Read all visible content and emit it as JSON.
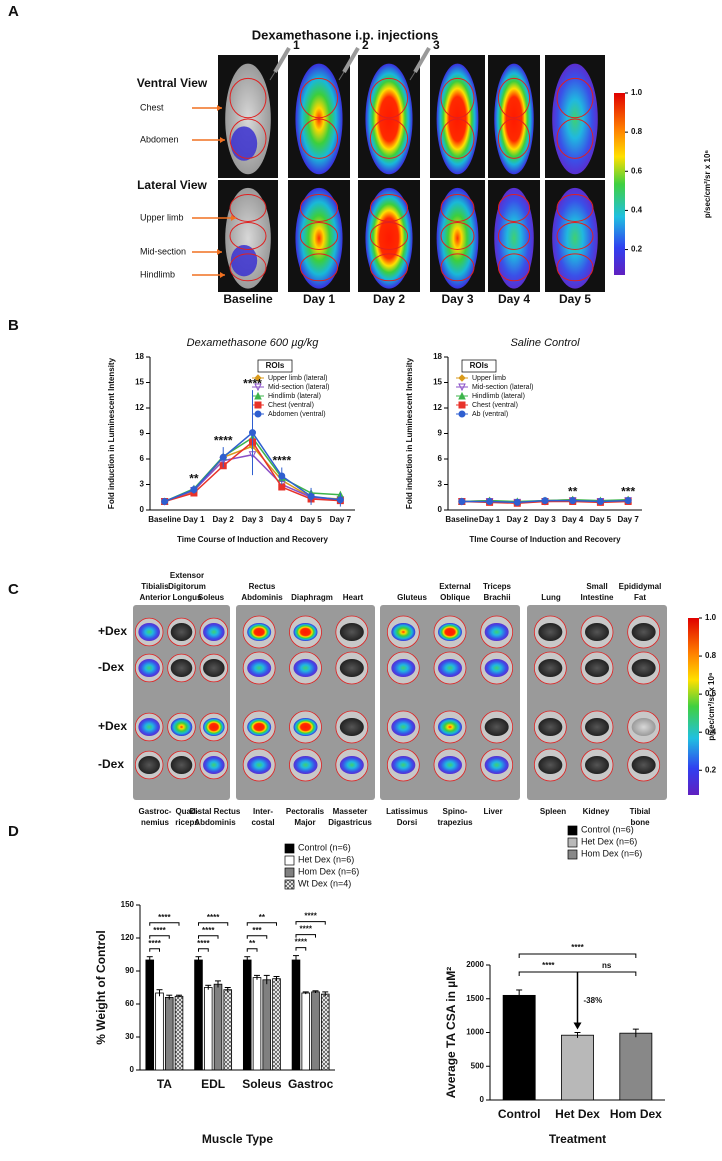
{
  "panel_labels": [
    "A",
    "B",
    "C",
    "D"
  ],
  "panel_a": {
    "title": "Dexamethasone i.p. injections",
    "injections": [
      "1",
      "2",
      "3"
    ],
    "views": [
      "Ventral View",
      "Lateral View"
    ],
    "ventral_rois": [
      "Chest",
      "Abdomen"
    ],
    "lateral_rois": [
      "Upper limb",
      "Mid-section",
      "Hindlimb"
    ],
    "columns": [
      "Baseline",
      "Day 1",
      "Day 2",
      "Day 3",
      "Day 4",
      "Day 5"
    ],
    "colorbar": {
      "label": "p/sec/cm²/sr x 10⁶",
      "clim": [
        0.07,
        1
      ],
      "ticks": [
        {
          "value": 1,
          "label": "1.0"
        },
        0.8,
        0.6,
        0.4,
        0.2
      ]
    }
  },
  "panel_c": {
    "top_labels": [
      [
        "Tibialis",
        "Anterior"
      ],
      [
        "Extensor",
        "Digitorum",
        "Longus"
      ],
      [
        "Soleus"
      ],
      [
        "Rectus",
        "Abdominis"
      ],
      [
        "Diaphragm"
      ],
      [
        "Heart"
      ],
      [
        "Gluteus"
      ],
      [
        "External",
        "Oblique"
      ],
      [
        "Triceps",
        "Brachii"
      ],
      [
        "Lung"
      ],
      [
        "Small",
        "Intestine"
      ],
      [
        "Epididymal",
        "Fat"
      ]
    ],
    "bottom_labels": [
      [
        "Gastroc-",
        "nemius"
      ],
      [
        "Quad-",
        "riceps"
      ],
      [
        "Distal Rectus",
        "Abdominis"
      ],
      [
        "Inter-",
        "costal"
      ],
      [
        "Pectoralis",
        "Major"
      ],
      [
        "Masseter",
        "Digastricus"
      ],
      [
        "Latissimus",
        "Dorsi"
      ],
      [
        "Spino-",
        "trapezius"
      ],
      [
        "Liver"
      ],
      [
        "Spleen"
      ],
      [
        "Kidney"
      ],
      [
        "Tibial",
        "bone"
      ]
    ],
    "rows": [
      "+Dex",
      "-Dex",
      "+Dex",
      "-Dex"
    ],
    "colorbar": {
      "label": "p/sec/cm²/sr x 10⁶",
      "clim": [
        0.07,
        1
      ],
      "ticks": [
        {
          "value": 1,
          "label": "1.0"
        },
        0.8,
        0.6,
        0.4,
        0.2
      ]
    }
  },
  "chart_data": [
    {
      "type": "line",
      "title": "Dexamethasone 600 µg/kg",
      "y_label": "Fold induction in Luminescent Intensity",
      "x_label": "Time Course of Induction and Recovery",
      "categories": [
        "Baseline",
        "Day 1",
        "Day 2",
        "Day 3",
        "Day 4",
        "Day 5",
        "Day 7"
      ],
      "ylim": [
        0,
        18
      ],
      "yticks": [
        0,
        3,
        6,
        9,
        12,
        15,
        18
      ],
      "legend_title": "ROIs",
      "series": [
        {
          "name": "Upper limb (lateral)",
          "color": "#d99a1c",
          "marker": "diamond",
          "values": [
            1,
            2.2,
            6.2,
            7.5,
            3.5,
            1.5,
            1.3
          ]
        },
        {
          "name": "Mid-section (lateral)",
          "color": "#8a4fc7",
          "marker": "triangle-down",
          "values": [
            1,
            2.3,
            5.8,
            6.5,
            3.0,
            1.5,
            1.2
          ]
        },
        {
          "name": "Hindlimb (lateral)",
          "color": "#3cb44b",
          "marker": "triangle",
          "values": [
            1,
            2.5,
            6.3,
            8.5,
            3.8,
            2.0,
            1.8
          ]
        },
        {
          "name": "Chest (ventral)",
          "color": "#e8322a",
          "marker": "square",
          "values": [
            1,
            2.0,
            5.2,
            8.0,
            2.7,
            1.3,
            1.1
          ]
        },
        {
          "name": "Abdomen (ventral)",
          "color": "#2f5fd0",
          "marker": "circle",
          "values": [
            1,
            2.4,
            6.2,
            9.1,
            4.0,
            1.6,
            1.2
          ],
          "errors": [
            0.1,
            0.5,
            1.2,
            5.0,
            1.0,
            1.0,
            0.8
          ]
        }
      ],
      "annotations": [
        {
          "text": "**",
          "category": "Day 1"
        },
        {
          "text": "****",
          "category": "Day 2"
        },
        {
          "text": "****",
          "category": "Day 3"
        },
        {
          "text": "****",
          "category": "Day 4"
        }
      ]
    },
    {
      "type": "line",
      "title": "Saline Control",
      "y_label": "Fold induction in Luminescent Intensity",
      "x_label": "TIme Course of Induction and Recovery",
      "categories": [
        "Baseline",
        "Day 1",
        "Day 2",
        "Day 3",
        "Day 4",
        "Day 5",
        "Day 7"
      ],
      "ylim": [
        0,
        18
      ],
      "yticks": [
        0,
        3,
        6,
        9,
        12,
        15,
        18
      ],
      "legend_title": "ROIs",
      "series": [
        {
          "name": "Upper limb",
          "color": "#d99a1c",
          "marker": "diamond",
          "values": [
            1,
            1.1,
            0.9,
            1.1,
            1.2,
            1.0,
            1.2
          ]
        },
        {
          "name": "Mid-section (lateral)",
          "color": "#8a4fc7",
          "marker": "triangle-down",
          "values": [
            1,
            1.0,
            0.9,
            1.0,
            1.1,
            1.0,
            1.1
          ]
        },
        {
          "name": "Hindlimb (lateral)",
          "color": "#3cb44b",
          "marker": "triangle",
          "values": [
            1,
            1.1,
            1.0,
            1.1,
            1.2,
            1.1,
            1.2
          ]
        },
        {
          "name": "Chest (ventral)",
          "color": "#e8322a",
          "marker": "square",
          "values": [
            1,
            0.9,
            0.8,
            1.0,
            1.0,
            0.9,
            1.0
          ]
        },
        {
          "name": "Ab (ventral)",
          "color": "#2f5fd0",
          "marker": "circle",
          "values": [
            1,
            1.0,
            0.9,
            1.1,
            1.1,
            1.0,
            1.1
          ],
          "errors": [
            0.1,
            0.2,
            0.2,
            0.2,
            0.3,
            0.2,
            0.3
          ]
        }
      ],
      "annotations": [
        {
          "text": "**",
          "category": "Day 4"
        },
        {
          "text": "***",
          "category": "Day 7"
        }
      ]
    },
    {
      "type": "bar",
      "y_label": "% Weight of Control",
      "x_label": "Muscle Type",
      "categories": [
        "TA",
        "EDL",
        "Soleus",
        "Gastroc"
      ],
      "ylim": [
        0,
        150
      ],
      "yticks": [
        0,
        30,
        60,
        90,
        120,
        150
      ],
      "series": [
        {
          "name": "Control (n=6)",
          "color": "#000000",
          "values": [
            100,
            100,
            100,
            100
          ],
          "errors": [
            3,
            3,
            3,
            4
          ]
        },
        {
          "name": "Het Dex (n=6)",
          "color": "#ffffff",
          "values": [
            70,
            75,
            84,
            70
          ],
          "errors": [
            3,
            2,
            2,
            1
          ]
        },
        {
          "name": "Hom Dex (n=6)",
          "color": "#808080",
          "values": [
            66,
            78,
            82,
            71
          ],
          "errors": [
            2,
            3,
            4,
            1
          ]
        },
        {
          "name": "Wt Dex (n=4)",
          "color": "#b0b0b0",
          "pattern": "crosshatch",
          "values": [
            67,
            73,
            83,
            69
          ],
          "errors": [
            1,
            2,
            2,
            2
          ]
        }
      ],
      "significance": [
        {
          "category": "TA",
          "labels": [
            "****",
            "****",
            "****"
          ]
        },
        {
          "category": "EDL",
          "labels": [
            "****",
            "****",
            "****"
          ]
        },
        {
          "category": "Soleus",
          "labels": [
            "**",
            "***",
            "**"
          ]
        },
        {
          "category": "Gastroc",
          "labels": [
            "****",
            "****",
            "****"
          ]
        }
      ]
    },
    {
      "type": "bar",
      "y_label": "Average TA CSA in µM²",
      "x_label": "Treatment",
      "categories": [
        "Control",
        "Het Dex",
        "Hom Dex"
      ],
      "values": [
        1550,
        960,
        990
      ],
      "errors": [
        80,
        40,
        60
      ],
      "colors": [
        "#000000",
        "#b8b8b8",
        "#888888"
      ],
      "legend_labels": [
        "Control (n=6)",
        "Het Dex (n=6)",
        "Hom Dex (n=6)"
      ],
      "ylim": [
        0,
        2000
      ],
      "yticks": [
        0,
        500,
        1000,
        1500,
        2000
      ],
      "brackets": [
        {
          "from": "Control",
          "to": "Hom Dex",
          "label": "****"
        },
        {
          "from": "Control",
          "to": "Het Dex",
          "label": "****"
        },
        {
          "from": "Het Dex",
          "to": "Hom Dex",
          "label": "ns"
        }
      ],
      "change": {
        "category": "Het Dex",
        "label": "-38%"
      }
    }
  ]
}
